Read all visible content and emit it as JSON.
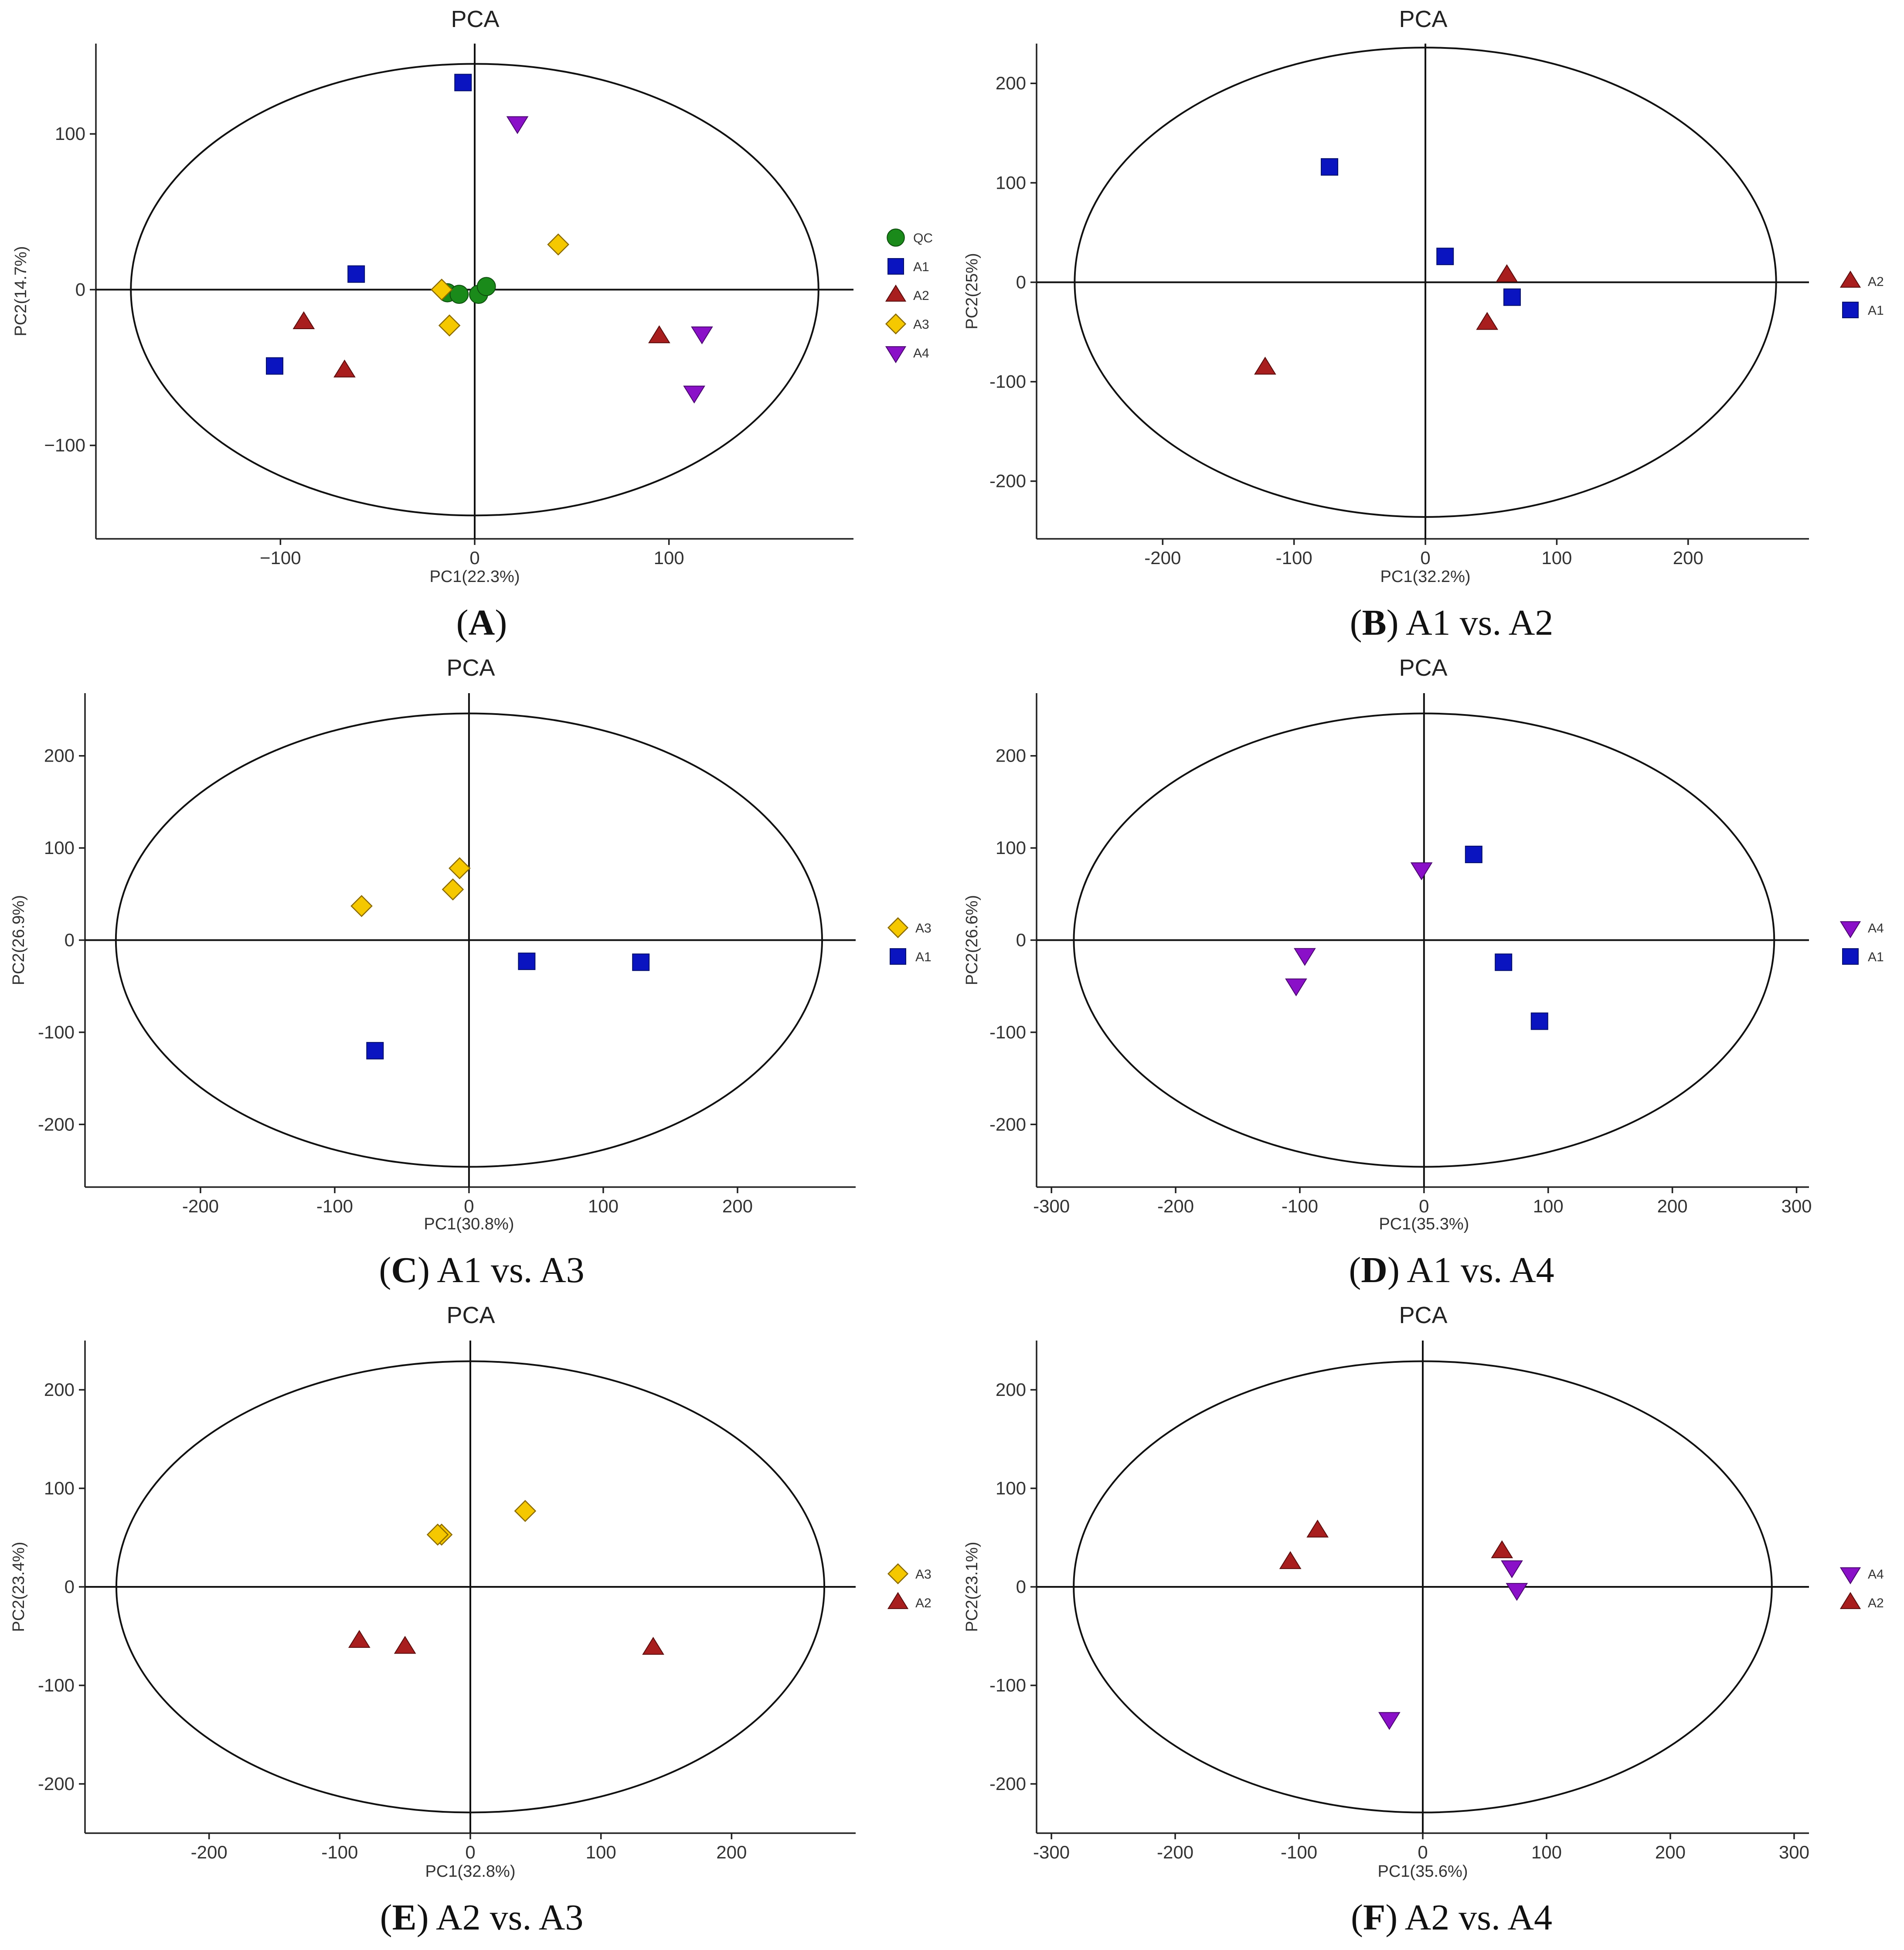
{
  "colors": {
    "QC": "#1a8a1a",
    "A1": "#0a14c0",
    "A2": "#a81e1e",
    "A3": "#f5c800",
    "A4": "#8a10c8"
  },
  "shapes": {
    "QC": "circle",
    "A1": "square",
    "A2": "triangle-up",
    "A3": "diamond",
    "A4": "triangle-down"
  },
  "chart_data": [
    {
      "panel": "A",
      "type": "scatter",
      "title": "PCA",
      "xlabel": "PC1(22.3%)",
      "ylabel": "PC2(14.7%)",
      "caption_letter": "A",
      "caption_text": "",
      "xlim": [
        -195,
        195
      ],
      "ylim": [
        -160,
        158
      ],
      "xticks": [
        -100,
        0,
        100
      ],
      "xtick_labels": [
        "−100",
        "0",
        "100"
      ],
      "yticks": [
        -100,
        0,
        100
      ],
      "ytick_labels": [
        "−100",
        "0",
        "100"
      ],
      "ellipse": {
        "rx": 177,
        "ry": 145
      },
      "legend": [
        "QC",
        "A1",
        "A2",
        "A3",
        "A4"
      ],
      "series": [
        {
          "name": "QC",
          "points": [
            [
              -14,
              -2
            ],
            [
              -8,
              -3
            ],
            [
              2,
              -3
            ],
            [
              6,
              2
            ]
          ]
        },
        {
          "name": "A1",
          "points": [
            [
              -6,
              133
            ],
            [
              -61,
              10
            ],
            [
              -103,
              -49
            ]
          ]
        },
        {
          "name": "A2",
          "points": [
            [
              -88,
              -21
            ],
            [
              -67,
              -52
            ],
            [
              95,
              -30
            ]
          ]
        },
        {
          "name": "A3",
          "points": [
            [
              43,
              29
            ],
            [
              -17,
              0
            ],
            [
              -13,
              -23
            ]
          ]
        },
        {
          "name": "A4",
          "points": [
            [
              22,
              107
            ],
            [
              117,
              -28
            ],
            [
              113,
              -66
            ]
          ]
        }
      ]
    },
    {
      "panel": "B",
      "type": "scatter",
      "title": "PCA",
      "xlabel": "PC1(32.2%)",
      "ylabel": "PC2(25%)",
      "caption_letter": "B",
      "caption_text": "A1 vs. A2",
      "xlim": [
        -296,
        292
      ],
      "ylim": [
        -258,
        240
      ],
      "xticks": [
        -200,
        -100,
        0,
        100,
        200
      ],
      "xtick_labels": [
        "-200",
        "-100",
        "0",
        "100",
        "200"
      ],
      "yticks": [
        -200,
        -100,
        0,
        100,
        200
      ],
      "ytick_labels": [
        "-200",
        "-100",
        "0",
        "100",
        "200"
      ],
      "ellipse": {
        "rx": 267,
        "ry": 236
      },
      "legend": [
        "A2",
        "A1"
      ],
      "series": [
        {
          "name": "A2",
          "points": [
            [
              62,
              7
            ],
            [
              47,
              -41
            ],
            [
              -122,
              -86
            ]
          ]
        },
        {
          "name": "A1",
          "points": [
            [
              -73,
              116
            ],
            [
              15,
              26
            ],
            [
              66,
              -15
            ]
          ]
        }
      ]
    },
    {
      "panel": "C",
      "type": "scatter",
      "title": "PCA",
      "xlabel": "PC1(30.8%)",
      "ylabel": "PC2(26.9%)",
      "caption_letter": "C",
      "caption_text": "A1 vs. A3",
      "xlim": [
        -286,
        288
      ],
      "ylim": [
        -268,
        268
      ],
      "xticks": [
        -200,
        -100,
        0,
        100,
        200
      ],
      "xtick_labels": [
        "-200",
        "-100",
        "0",
        "100",
        "200"
      ],
      "yticks": [
        -200,
        -100,
        0,
        100,
        200
      ],
      "ytick_labels": [
        "-200",
        "-100",
        "0",
        "100",
        "200"
      ],
      "ellipse": {
        "rx": 263,
        "ry": 246
      },
      "legend": [
        "A3",
        "A1"
      ],
      "series": [
        {
          "name": "A3",
          "points": [
            [
              -7,
              78
            ],
            [
              -12,
              55
            ],
            [
              -80,
              37
            ]
          ]
        },
        {
          "name": "A1",
          "points": [
            [
              43,
              -23
            ],
            [
              128,
              -24
            ],
            [
              -70,
              -120
            ]
          ]
        }
      ]
    },
    {
      "panel": "D",
      "type": "scatter",
      "title": "PCA",
      "xlabel": "PC1(35.3%)",
      "ylabel": "PC2(26.6%)",
      "caption_letter": "D",
      "caption_text": "A1 vs. A4",
      "xlim": [
        -312,
        310
      ],
      "ylim": [
        -268,
        268
      ],
      "xticks": [
        -300,
        -200,
        -100,
        0,
        100,
        200,
        300
      ],
      "xtick_labels": [
        "-300",
        "-200",
        "-100",
        "0",
        "100",
        "200",
        "300"
      ],
      "yticks": [
        -200,
        -100,
        0,
        100,
        200
      ],
      "ytick_labels": [
        "-200",
        "-100",
        "0",
        "100",
        "200"
      ],
      "ellipse": {
        "rx": 282,
        "ry": 246
      },
      "legend": [
        "A4",
        "A1"
      ],
      "series": [
        {
          "name": "A4",
          "points": [
            [
              -2,
              77
            ],
            [
              -96,
              -16
            ],
            [
              -103,
              -49
            ]
          ]
        },
        {
          "name": "A1",
          "points": [
            [
              40,
              93
            ],
            [
              64,
              -24
            ],
            [
              93,
              -88
            ]
          ]
        }
      ]
    },
    {
      "panel": "E",
      "type": "scatter",
      "title": "PCA",
      "xlabel": "PC1(32.8%)",
      "ylabel": "PC2(23.4%)",
      "caption_letter": "E",
      "caption_text": "A2 vs. A3",
      "xlim": [
        -295,
        295
      ],
      "ylim": [
        -250,
        250
      ],
      "xticks": [
        -200,
        -100,
        0,
        100,
        200
      ],
      "xtick_labels": [
        "-200",
        "-100",
        "0",
        "100",
        "200"
      ],
      "yticks": [
        -200,
        -100,
        0,
        100,
        200
      ],
      "ytick_labels": [
        "-200",
        "-100",
        "0",
        "100",
        "200"
      ],
      "ellipse": {
        "rx": 271,
        "ry": 229
      },
      "legend": [
        "A3",
        "A2"
      ],
      "series": [
        {
          "name": "A3",
          "points": [
            [
              42,
              77
            ],
            [
              -22,
              53
            ],
            [
              -25,
              53
            ]
          ]
        },
        {
          "name": "A2",
          "points": [
            [
              -85,
              -55
            ],
            [
              -50,
              -61
            ],
            [
              140,
              -62
            ]
          ]
        }
      ]
    },
    {
      "panel": "F",
      "type": "scatter",
      "title": "PCA",
      "xlabel": "PC1(35.6%)",
      "ylabel": "PC2(23.1%)",
      "caption_letter": "F",
      "caption_text": "A2 vs. A4",
      "xlim": [
        -312,
        312
      ],
      "ylim": [
        -250,
        250
      ],
      "xticks": [
        -300,
        -200,
        -100,
        0,
        100,
        200,
        300
      ],
      "xtick_labels": [
        "-300",
        "-200",
        "-100",
        "0",
        "100",
        "200",
        "300"
      ],
      "yticks": [
        -200,
        -100,
        0,
        100,
        200
      ],
      "ytick_labels": [
        "-200",
        "-100",
        "0",
        "100",
        "200"
      ],
      "ellipse": {
        "rx": 282,
        "ry": 229
      },
      "legend": [
        "A4",
        "A2"
      ],
      "series": [
        {
          "name": "A4",
          "points": [
            [
              72,
              20
            ],
            [
              76,
              -3
            ],
            [
              -27,
              -134
            ]
          ]
        },
        {
          "name": "A2",
          "points": [
            [
              -107,
              25
            ],
            [
              -85,
              57
            ],
            [
              64,
              36
            ]
          ]
        }
      ]
    }
  ]
}
